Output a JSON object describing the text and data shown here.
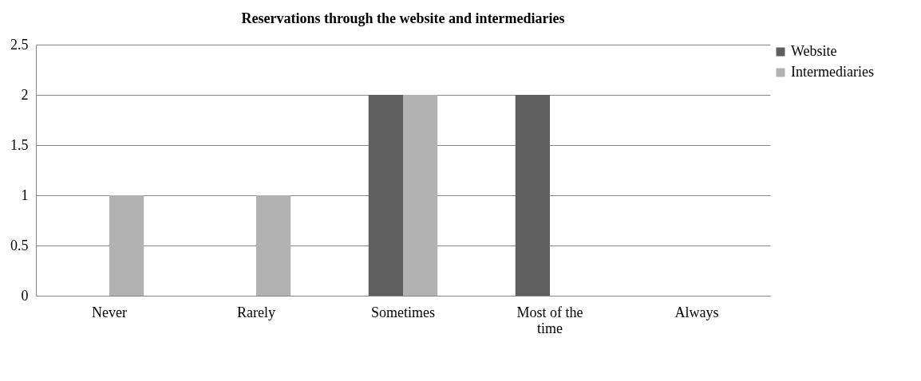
{
  "chart_data": {
    "type": "bar",
    "title": "Reservations through the website and intermediaries",
    "categories": [
      "Never",
      "Rarely",
      "Sometimes",
      "Most of the time",
      "Always"
    ],
    "series": [
      {
        "name": "Website",
        "color": "#5f5f5f",
        "values": [
          0,
          0,
          2,
          2,
          0
        ]
      },
      {
        "name": "Intermediaries",
        "color": "#b2b2b2",
        "values": [
          1,
          1,
          2,
          0,
          0
        ]
      }
    ],
    "ylim": [
      0,
      2.5
    ],
    "yticks": [
      0,
      0.5,
      1,
      1.5,
      2,
      2.5
    ],
    "grid": "y",
    "legend": "right"
  }
}
